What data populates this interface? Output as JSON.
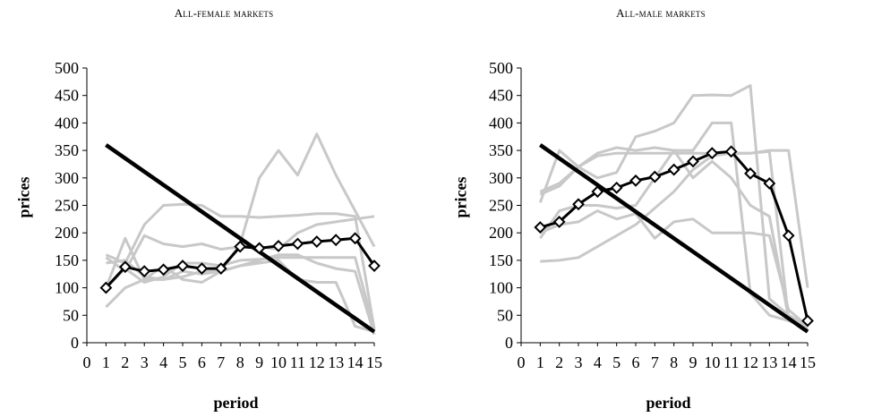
{
  "chart_data": [
    {
      "type": "line",
      "title": "All-female markets",
      "xlabel": "period",
      "ylabel": "prices",
      "x_ticks": [
        0,
        1,
        2,
        3,
        4,
        5,
        6,
        7,
        8,
        9,
        10,
        11,
        12,
        13,
        14,
        15
      ],
      "y_ticks": [
        0,
        50,
        100,
        150,
        200,
        250,
        300,
        350,
        400,
        450,
        500
      ],
      "xlim": [
        0,
        15
      ],
      "ylim": [
        0,
        500
      ],
      "grid": false,
      "line_colors": {
        "individual": "#c8c8c8",
        "average": "#000000",
        "reference": "#000000"
      },
      "individual_series": [
        {
          "x": [
            1,
            2,
            3,
            4,
            5,
            6,
            7,
            8,
            9,
            10,
            11,
            12,
            13,
            14,
            15
          ],
          "y": [
            100,
            190,
            115,
            115,
            130,
            125,
            130,
            180,
            300,
            350,
            305,
            380,
            305,
            240,
            175
          ]
        },
        {
          "x": [
            1,
            2,
            3,
            4,
            5,
            6,
            7,
            8,
            9,
            10,
            11,
            12,
            13,
            14,
            15
          ],
          "y": [
            160,
            145,
            215,
            250,
            252,
            250,
            230,
            230,
            228,
            230,
            232,
            235,
            235,
            230,
            25
          ]
        },
        {
          "x": [
            1,
            2,
            3,
            4,
            5,
            6,
            7,
            8,
            9,
            10,
            11,
            12,
            13,
            14,
            15
          ],
          "y": [
            155,
            130,
            195,
            180,
            175,
            180,
            170,
            175,
            175,
            170,
            200,
            215,
            220,
            225,
            230
          ]
        },
        {
          "x": [
            1,
            2,
            3,
            4,
            5,
            6,
            7,
            8,
            9,
            10,
            11,
            12,
            13,
            14,
            15
          ],
          "y": [
            100,
            135,
            110,
            120,
            145,
            145,
            140,
            150,
            152,
            155,
            155,
            155,
            155,
            155,
            25
          ]
        },
        {
          "x": [
            1,
            2,
            3,
            4,
            5,
            6,
            7,
            8,
            9,
            10,
            11,
            12,
            13,
            14,
            15
          ],
          "y": [
            65,
            100,
            115,
            140,
            115,
            110,
            130,
            140,
            145,
            150,
            115,
            110,
            110,
            30,
            20
          ]
        },
        {
          "x": [
            1,
            2,
            3,
            4,
            5,
            6,
            7,
            8,
            9,
            10,
            11,
            12,
            13,
            14,
            15
          ],
          "y": [
            145,
            150,
            120,
            115,
            120,
            130,
            130,
            140,
            150,
            160,
            160,
            145,
            135,
            130,
            15
          ]
        }
      ],
      "average_series": {
        "x": [
          1,
          2,
          3,
          4,
          5,
          6,
          7,
          8,
          9,
          10,
          11,
          12,
          13,
          14,
          15
        ],
        "y": [
          100,
          138,
          130,
          133,
          140,
          135,
          135,
          175,
          172,
          176,
          180,
          184,
          187,
          190,
          140
        ]
      },
      "reference_line": {
        "x": [
          1,
          15
        ],
        "y": [
          360,
          20
        ]
      }
    },
    {
      "type": "line",
      "title": "All-male markets",
      "xlabel": "period",
      "ylabel": "prices",
      "x_ticks": [
        0,
        1,
        2,
        3,
        4,
        5,
        6,
        7,
        8,
        9,
        10,
        11,
        12,
        13,
        14,
        15
      ],
      "y_ticks": [
        0,
        50,
        100,
        150,
        200,
        250,
        300,
        350,
        400,
        450,
        500
      ],
      "xlim": [
        0,
        15
      ],
      "ylim": [
        0,
        500
      ],
      "grid": false,
      "line_colors": {
        "individual": "#c8c8c8",
        "average": "#000000",
        "reference": "#000000"
      },
      "individual_series": [
        {
          "x": [
            1,
            2,
            3,
            4,
            5,
            6,
            7,
            8,
            9,
            10,
            11,
            12,
            13,
            14,
            15
          ],
          "y": [
            255,
            350,
            320,
            345,
            355,
            350,
            355,
            350,
            350,
            400,
            400,
            90,
            50,
            40,
            25
          ]
        },
        {
          "x": [
            1,
            2,
            3,
            4,
            5,
            6,
            7,
            8,
            9,
            10,
            11,
            12,
            13,
            14,
            15
          ],
          "y": [
            275,
            290,
            320,
            300,
            310,
            375,
            385,
            400,
            450,
            451,
            450,
            468,
            80,
            50,
            30
          ]
        },
        {
          "x": [
            1,
            2,
            3,
            4,
            5,
            6,
            7,
            8,
            9,
            10,
            11,
            12,
            13,
            14,
            15
          ],
          "y": [
            190,
            240,
            250,
            250,
            245,
            250,
            300,
            350,
            300,
            330,
            300,
            250,
            230,
            45,
            30
          ]
        },
        {
          "x": [
            1,
            2,
            3,
            4,
            5,
            6,
            7,
            8,
            9,
            10,
            11,
            12,
            13,
            14,
            15
          ],
          "y": [
            148,
            150,
            155,
            175,
            195,
            215,
            245,
            275,
            315,
            340,
            345,
            345,
            350,
            350,
            100
          ]
        },
        {
          "x": [
            1,
            2,
            3,
            4,
            5,
            6,
            7,
            8,
            9,
            10,
            11,
            12,
            13,
            14,
            15
          ],
          "y": [
            200,
            215,
            220,
            240,
            225,
            235,
            190,
            220,
            225,
            200,
            200,
            200,
            195,
            60,
            30
          ]
        },
        {
          "x": [
            1,
            2,
            3,
            4,
            5,
            6,
            7,
            8,
            9,
            10,
            11,
            12,
            13,
            14,
            15
          ],
          "y": [
            270,
            285,
            320,
            340,
            345,
            345,
            345,
            345,
            345,
            345,
            345,
            345,
            348,
            45,
            25
          ]
        }
      ],
      "average_series": {
        "x": [
          1,
          2,
          3,
          4,
          5,
          6,
          7,
          8,
          9,
          10,
          11,
          12,
          13,
          14,
          15
        ],
        "y": [
          210,
          220,
          252,
          275,
          282,
          295,
          302,
          315,
          330,
          345,
          348,
          308,
          290,
          195,
          40
        ]
      },
      "reference_line": {
        "x": [
          1,
          15
        ],
        "y": [
          360,
          20
        ]
      }
    }
  ]
}
